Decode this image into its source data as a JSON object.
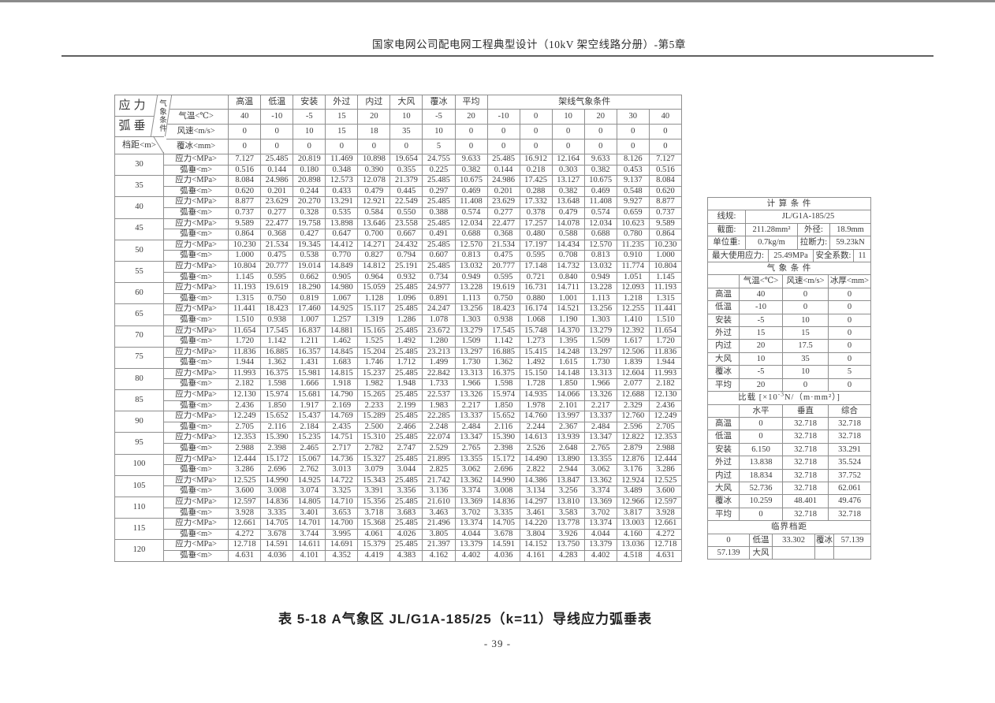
{
  "page": {
    "header_title": "国家电网公司配电网工程典型设计（10kV 架空线路分册）-第5章",
    "caption": "表 5-18 A气象区 JL/G1A-185/25（k=11）导线应力弧垂表",
    "page_number": "- 39 -"
  },
  "main_table": {
    "corner_line1": "应力",
    "corner_line2": "弧垂",
    "corner_diag": "气象条件",
    "corner_bottom": "档距<m>",
    "condition_headers": [
      "高温",
      "低温",
      "安装",
      "外过",
      "内过",
      "大风",
      "覆冰",
      "平均"
    ],
    "stringing_header": "架线气象条件",
    "param_rows": [
      {
        "label": "气温<℃>",
        "values": [
          "40",
          "-10",
          "-5",
          "15",
          "20",
          "10",
          "-5",
          "20",
          "-10",
          "0",
          "10",
          "20",
          "30",
          "40"
        ]
      },
      {
        "label": "风速<m/s>",
        "values": [
          "0",
          "0",
          "10",
          "15",
          "18",
          "35",
          "10",
          "0",
          "0",
          "0",
          "0",
          "0",
          "0",
          "0"
        ]
      },
      {
        "label": "覆冰<mm>",
        "values": [
          "0",
          "0",
          "0",
          "0",
          "0",
          "0",
          "5",
          "0",
          "0",
          "0",
          "0",
          "0",
          "0",
          "0"
        ]
      }
    ],
    "stress_label": "应力<MPa>",
    "sag_label": "弧垂<m>",
    "spans": [
      {
        "span": "30",
        "stress": [
          "7.127",
          "25.485",
          "20.819",
          "11.469",
          "10.898",
          "19.654",
          "24.755",
          "9.633",
          "25.485",
          "16.912",
          "12.164",
          "9.633",
          "8.126",
          "7.127"
        ],
        "sag": [
          "0.516",
          "0.144",
          "0.180",
          "0.348",
          "0.390",
          "0.355",
          "0.225",
          "0.382",
          "0.144",
          "0.218",
          "0.303",
          "0.382",
          "0.453",
          "0.516"
        ]
      },
      {
        "span": "35",
        "stress": [
          "8.084",
          "24.986",
          "20.898",
          "12.573",
          "12.078",
          "21.379",
          "25.485",
          "10.675",
          "24.986",
          "17.425",
          "13.127",
          "10.675",
          "9.137",
          "8.084"
        ],
        "sag": [
          "0.620",
          "0.201",
          "0.244",
          "0.433",
          "0.479",
          "0.445",
          "0.297",
          "0.469",
          "0.201",
          "0.288",
          "0.382",
          "0.469",
          "0.548",
          "0.620"
        ]
      },
      {
        "span": "40",
        "stress": [
          "8.877",
          "23.629",
          "20.270",
          "13.291",
          "12.921",
          "22.549",
          "25.485",
          "11.408",
          "23.629",
          "17.332",
          "13.648",
          "11.408",
          "9.927",
          "8.877"
        ],
        "sag": [
          "0.737",
          "0.277",
          "0.328",
          "0.535",
          "0.584",
          "0.550",
          "0.388",
          "0.574",
          "0.277",
          "0.378",
          "0.479",
          "0.574",
          "0.659",
          "0.737"
        ]
      },
      {
        "span": "45",
        "stress": [
          "9.589",
          "22.477",
          "19.758",
          "13.898",
          "13.646",
          "23.558",
          "25.485",
          "12.034",
          "22.477",
          "17.257",
          "14.078",
          "12.034",
          "10.623",
          "9.589"
        ],
        "sag": [
          "0.864",
          "0.368",
          "0.427",
          "0.647",
          "0.700",
          "0.667",
          "0.491",
          "0.688",
          "0.368",
          "0.480",
          "0.588",
          "0.688",
          "0.780",
          "0.864"
        ]
      },
      {
        "span": "50",
        "stress": [
          "10.230",
          "21.534",
          "19.345",
          "14.412",
          "14.271",
          "24.432",
          "25.485",
          "12.570",
          "21.534",
          "17.197",
          "14.434",
          "12.570",
          "11.235",
          "10.230"
        ],
        "sag": [
          "1.000",
          "0.475",
          "0.538",
          "0.770",
          "0.827",
          "0.794",
          "0.607",
          "0.813",
          "0.475",
          "0.595",
          "0.708",
          "0.813",
          "0.910",
          "1.000"
        ]
      },
      {
        "span": "55",
        "stress": [
          "10.804",
          "20.777",
          "19.014",
          "14.849",
          "14.812",
          "25.191",
          "25.485",
          "13.032",
          "20.777",
          "17.148",
          "14.732",
          "13.032",
          "11.774",
          "10.804"
        ],
        "sag": [
          "1.145",
          "0.595",
          "0.662",
          "0.905",
          "0.964",
          "0.932",
          "0.734",
          "0.949",
          "0.595",
          "0.721",
          "0.840",
          "0.949",
          "1.051",
          "1.145"
        ]
      },
      {
        "span": "60",
        "stress": [
          "11.193",
          "19.619",
          "18.290",
          "14.980",
          "15.059",
          "25.485",
          "24.977",
          "13.228",
          "19.619",
          "16.731",
          "14.711",
          "13.228",
          "12.093",
          "11.193"
        ],
        "sag": [
          "1.315",
          "0.750",
          "0.819",
          "1.067",
          "1.128",
          "1.096",
          "0.891",
          "1.113",
          "0.750",
          "0.880",
          "1.001",
          "1.113",
          "1.218",
          "1.315"
        ]
      },
      {
        "span": "65",
        "stress": [
          "11.441",
          "18.423",
          "17.460",
          "14.925",
          "15.117",
          "25.485",
          "24.247",
          "13.256",
          "18.423",
          "16.174",
          "14.521",
          "13.256",
          "12.255",
          "11.441"
        ],
        "sag": [
          "1.510",
          "0.938",
          "1.007",
          "1.257",
          "1.319",
          "1.286",
          "1.078",
          "1.303",
          "0.938",
          "1.068",
          "1.190",
          "1.303",
          "1.410",
          "1.510"
        ]
      },
      {
        "span": "70",
        "stress": [
          "11.654",
          "17.545",
          "16.837",
          "14.881",
          "15.165",
          "25.485",
          "23.672",
          "13.279",
          "17.545",
          "15.748",
          "14.370",
          "13.279",
          "12.392",
          "11.654"
        ],
        "sag": [
          "1.720",
          "1.142",
          "1.211",
          "1.462",
          "1.525",
          "1.492",
          "1.280",
          "1.509",
          "1.142",
          "1.273",
          "1.395",
          "1.509",
          "1.617",
          "1.720"
        ]
      },
      {
        "span": "75",
        "stress": [
          "11.836",
          "16.885",
          "16.357",
          "14.845",
          "15.204",
          "25.485",
          "23.213",
          "13.297",
          "16.885",
          "15.415",
          "14.248",
          "13.297",
          "12.506",
          "11.836"
        ],
        "sag": [
          "1.944",
          "1.362",
          "1.431",
          "1.683",
          "1.746",
          "1.712",
          "1.499",
          "1.730",
          "1.362",
          "1.492",
          "1.615",
          "1.730",
          "1.839",
          "1.944"
        ]
      },
      {
        "span": "80",
        "stress": [
          "11.993",
          "16.375",
          "15.981",
          "14.815",
          "15.237",
          "25.485",
          "22.842",
          "13.313",
          "16.375",
          "15.150",
          "14.148",
          "13.313",
          "12.604",
          "11.993"
        ],
        "sag": [
          "2.182",
          "1.598",
          "1.666",
          "1.918",
          "1.982",
          "1.948",
          "1.733",
          "1.966",
          "1.598",
          "1.728",
          "1.850",
          "1.966",
          "2.077",
          "2.182"
        ]
      },
      {
        "span": "85",
        "stress": [
          "12.130",
          "15.974",
          "15.681",
          "14.790",
          "15.265",
          "25.485",
          "22.537",
          "13.326",
          "15.974",
          "14.935",
          "14.066",
          "13.326",
          "12.688",
          "12.130"
        ],
        "sag": [
          "2.436",
          "1.850",
          "1.917",
          "2.169",
          "2.233",
          "2.199",
          "1.983",
          "2.217",
          "1.850",
          "1.978",
          "2.101",
          "2.217",
          "2.329",
          "2.436"
        ]
      },
      {
        "span": "90",
        "stress": [
          "12.249",
          "15.652",
          "15.437",
          "14.769",
          "15.289",
          "25.485",
          "22.285",
          "13.337",
          "15.652",
          "14.760",
          "13.997",
          "13.337",
          "12.760",
          "12.249"
        ],
        "sag": [
          "2.705",
          "2.116",
          "2.184",
          "2.435",
          "2.500",
          "2.466",
          "2.248",
          "2.484",
          "2.116",
          "2.244",
          "2.367",
          "2.484",
          "2.596",
          "2.705"
        ]
      },
      {
        "span": "95",
        "stress": [
          "12.353",
          "15.390",
          "15.235",
          "14.751",
          "15.310",
          "25.485",
          "22.074",
          "13.347",
          "15.390",
          "14.613",
          "13.939",
          "13.347",
          "12.822",
          "12.353"
        ],
        "sag": [
          "2.988",
          "2.398",
          "2.465",
          "2.717",
          "2.782",
          "2.747",
          "2.529",
          "2.765",
          "2.398",
          "2.526",
          "2.648",
          "2.765",
          "2.879",
          "2.988"
        ]
      },
      {
        "span": "100",
        "stress": [
          "12.444",
          "15.172",
          "15.067",
          "14.736",
          "15.327",
          "25.485",
          "21.895",
          "13.355",
          "15.172",
          "14.490",
          "13.890",
          "13.355",
          "12.876",
          "12.444"
        ],
        "sag": [
          "3.286",
          "2.696",
          "2.762",
          "3.013",
          "3.079",
          "3.044",
          "2.825",
          "3.062",
          "2.696",
          "2.822",
          "2.944",
          "3.062",
          "3.176",
          "3.286"
        ]
      },
      {
        "span": "105",
        "stress": [
          "12.525",
          "14.990",
          "14.925",
          "14.722",
          "15.343",
          "25.485",
          "21.742",
          "13.362",
          "14.990",
          "14.386",
          "13.847",
          "13.362",
          "12.924",
          "12.525"
        ],
        "sag": [
          "3.600",
          "3.008",
          "3.074",
          "3.325",
          "3.391",
          "3.356",
          "3.136",
          "3.374",
          "3.008",
          "3.134",
          "3.256",
          "3.374",
          "3.489",
          "3.600"
        ]
      },
      {
        "span": "110",
        "stress": [
          "12.597",
          "14.836",
          "14.805",
          "14.710",
          "15.356",
          "25.485",
          "21.610",
          "13.369",
          "14.836",
          "14.297",
          "13.810",
          "13.369",
          "12.966",
          "12.597"
        ],
        "sag": [
          "3.928",
          "3.335",
          "3.401",
          "3.653",
          "3.718",
          "3.683",
          "3.463",
          "3.702",
          "3.335",
          "3.461",
          "3.583",
          "3.702",
          "3.817",
          "3.928"
        ]
      },
      {
        "span": "115",
        "stress": [
          "12.661",
          "14.705",
          "14.701",
          "14.700",
          "15.368",
          "25.485",
          "21.496",
          "13.374",
          "14.705",
          "14.220",
          "13.778",
          "13.374",
          "13.003",
          "12.661"
        ],
        "sag": [
          "4.272",
          "3.678",
          "3.744",
          "3.995",
          "4.061",
          "4.026",
          "3.805",
          "4.044",
          "3.678",
          "3.804",
          "3.926",
          "4.044",
          "4.160",
          "4.272"
        ]
      },
      {
        "span": "120",
        "stress": [
          "12.718",
          "14.591",
          "14.611",
          "14.691",
          "15.379",
          "25.485",
          "21.397",
          "13.379",
          "14.591",
          "14.152",
          "13.750",
          "13.379",
          "13.036",
          "12.718"
        ],
        "sag": [
          "4.631",
          "4.036",
          "4.101",
          "4.352",
          "4.419",
          "4.383",
          "4.162",
          "4.402",
          "4.036",
          "4.161",
          "4.283",
          "4.402",
          "4.518",
          "4.631"
        ]
      }
    ]
  },
  "side_table": {
    "calc_title": "计 算 条 件",
    "line_spec_label": "线规:",
    "line_spec_value": "JL/G1A-185/25",
    "section_label": "截面:",
    "section_value": "211.28mm²",
    "diameter_label": "外径:",
    "diameter_value": "18.9mm",
    "unit_weight_label": "单位重:",
    "unit_weight_value": "0.7kg/m",
    "breaking_force_label": "拉断力:",
    "breaking_force_value": "59.23kN",
    "max_stress_label": "最大使用应力:",
    "max_stress_value": "25.49MPa",
    "safety_factor_label": "安全系数:",
    "safety_factor_value": "11",
    "weather_title": "气 象 条 件",
    "weather_headers": [
      "",
      "气温<℃>",
      "风速<m/s>",
      "冰厚<mm>"
    ],
    "weather_rows": [
      [
        "高温",
        "40",
        "0",
        "0"
      ],
      [
        "低温",
        "-10",
        "0",
        "0"
      ],
      [
        "安装",
        "-5",
        "10",
        "0"
      ],
      [
        "外过",
        "15",
        "15",
        "0"
      ],
      [
        "内过",
        "20",
        "17.5",
        "0"
      ],
      [
        "大风",
        "10",
        "35",
        "0"
      ],
      [
        "覆冰",
        "-5",
        "10",
        "5"
      ],
      [
        "平均",
        "20",
        "0",
        "0"
      ]
    ],
    "load_title": {
      "pre": "比载 [×10",
      "sup": "-3",
      "post": "N/（m·mm²）]"
    },
    "load_headers": [
      "",
      "水平",
      "垂直",
      "综合"
    ],
    "load_rows": [
      [
        "高温",
        "0",
        "32.718",
        "32.718"
      ],
      [
        "低温",
        "0",
        "32.718",
        "32.718"
      ],
      [
        "安装",
        "6.150",
        "32.718",
        "33.291"
      ],
      [
        "外过",
        "13.838",
        "32.718",
        "35.524"
      ],
      [
        "内过",
        "18.834",
        "32.718",
        "37.752"
      ],
      [
        "大风",
        "52.736",
        "32.718",
        "62.061"
      ],
      [
        "覆冰",
        "10.259",
        "48.401",
        "49.476"
      ],
      [
        "平均",
        "0",
        "32.718",
        "32.718"
      ]
    ],
    "critical_title": "临界档距",
    "critical_rows": [
      [
        "0",
        "低温",
        "33.302",
        "覆冰",
        "57.139"
      ],
      [
        "57.139",
        "大风",
        "",
        "",
        ""
      ]
    ]
  }
}
